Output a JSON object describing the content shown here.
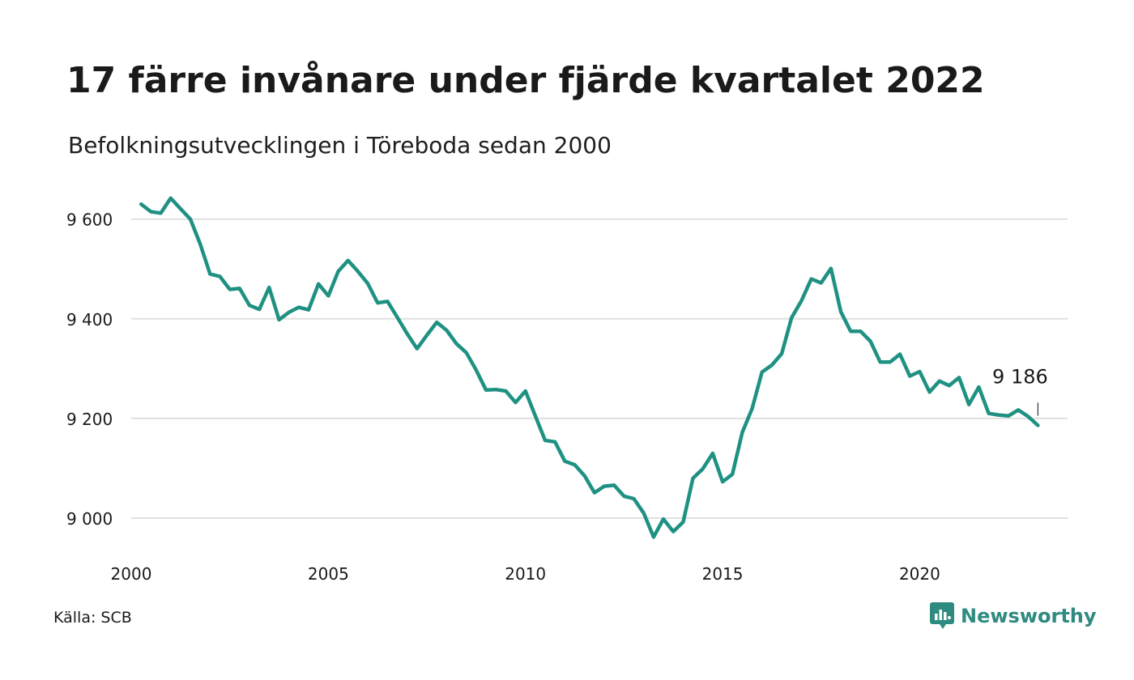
{
  "title": "17 färre invånare under fjärde kvartalet 2022",
  "subtitle": "Befolkningsutvecklingen i Töreboda sedan 2000",
  "source": "Källa: SCB",
  "brand": "Newsworthy",
  "colors": {
    "line": "#1f9183",
    "grid": "#e0e0e0",
    "brand": "#2f8a80"
  },
  "chart_data": {
    "type": "line",
    "xlim": [
      2000,
      2023.25
    ],
    "ylim": [
      8950,
      9650
    ],
    "x_ticks": [
      {
        "value": 2000,
        "label": "2000"
      },
      {
        "value": 2005,
        "label": "2005"
      },
      {
        "value": 2010,
        "label": "2010"
      },
      {
        "value": 2015,
        "label": "2015"
      },
      {
        "value": 2020,
        "label": "2020"
      }
    ],
    "y_ticks": [
      {
        "value": 9000,
        "label": "9 000"
      },
      {
        "value": 9200,
        "label": "9 200"
      },
      {
        "value": 9400,
        "label": "9 400"
      },
      {
        "value": 9600,
        "label": "9 600"
      }
    ],
    "grid": true,
    "x_start": 2000.25,
    "x_step": 0.25,
    "values": [
      9630,
      9615,
      9612,
      9642,
      9621,
      9600,
      9550,
      9490,
      9485,
      9459,
      9461,
      9427,
      9419,
      9463,
      9398,
      9413,
      9423,
      9418,
      9470,
      9446,
      9495,
      9517,
      9495,
      9471,
      9432,
      9435,
      9403,
      9370,
      9340,
      9367,
      9393,
      9377,
      9350,
      9332,
      9297,
      9257,
      9258,
      9255,
      9232,
      9255,
      9205,
      9156,
      9153,
      9114,
      9107,
      9085,
      9051,
      9064,
      9066,
      9044,
      9039,
      9010,
      8962,
      8998,
      8973,
      8992,
      9080,
      9099,
      9130,
      9073,
      9088,
      9172,
      9220,
      9293,
      9307,
      9330,
      9402,
      9436,
      9480,
      9472,
      9501,
      9414,
      9375,
      9375,
      9355,
      9313,
      9313,
      9329,
      9285,
      9294,
      9253,
      9275,
      9266,
      9282,
      9228,
      9263,
      9210,
      9207,
      9205,
      9217,
      9204,
      9186
    ],
    "end_label": "9 186",
    "xlabel": "",
    "ylabel": ""
  }
}
